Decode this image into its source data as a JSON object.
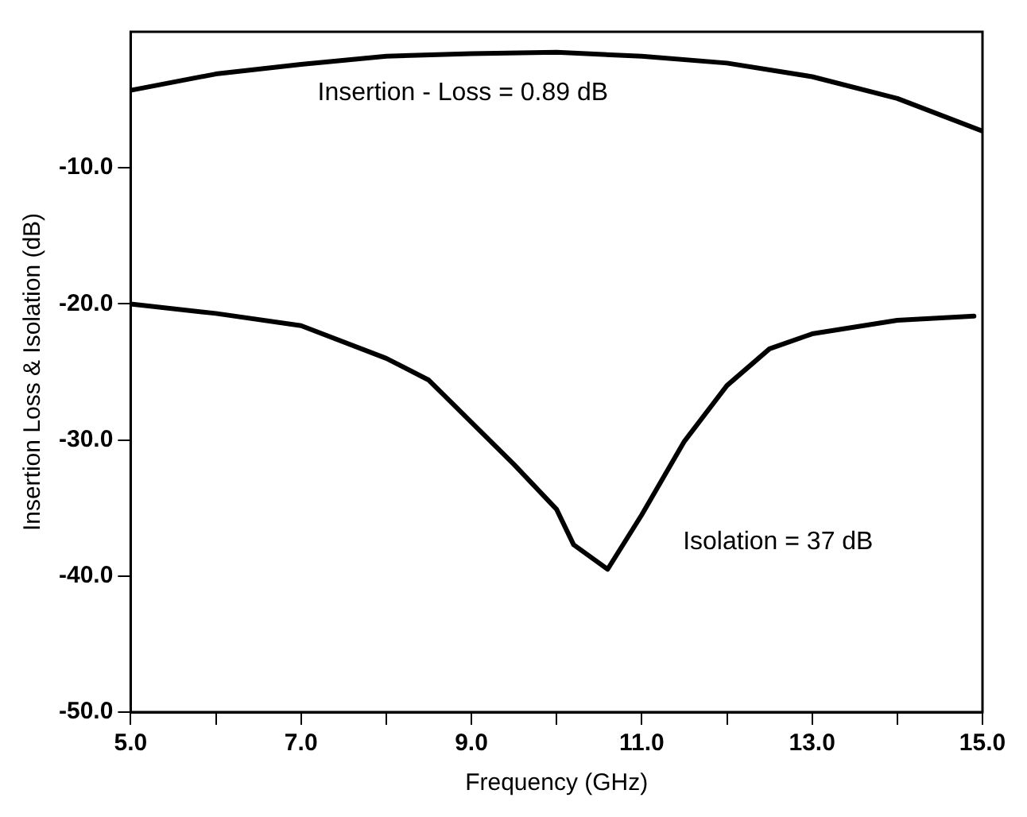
{
  "chart_data": {
    "type": "line",
    "xlabel": "Frequency (GHz)",
    "ylabel": "Insertion Loss & Isolation (dB)",
    "xlim": [
      5,
      15
    ],
    "ylim": [
      -50,
      0
    ],
    "xticks": [
      {
        "value": 5,
        "label": "5.0"
      },
      {
        "value": 6,
        "label": null
      },
      {
        "value": 7,
        "label": "7.0"
      },
      {
        "value": 8,
        "label": null
      },
      {
        "value": 9,
        "label": "9.0"
      },
      {
        "value": 10,
        "label": null
      },
      {
        "value": 11,
        "label": "11.0"
      },
      {
        "value": 12,
        "label": null
      },
      {
        "value": 13,
        "label": "13.0"
      },
      {
        "value": 14,
        "label": null
      },
      {
        "value": 15,
        "label": "15.0"
      }
    ],
    "yticks": [
      {
        "value": -10,
        "label": "-10.0"
      },
      {
        "value": -20,
        "label": "-20.0"
      },
      {
        "value": -30,
        "label": "-30.0"
      },
      {
        "value": -40,
        "label": "-40.0"
      },
      {
        "value": -50,
        "label": "-50.0"
      }
    ],
    "series": [
      {
        "color": "#000000",
        "x": [
          5,
          6,
          7,
          8,
          9,
          10,
          11,
          12,
          13,
          14,
          15
        ],
        "values": [
          -4.3,
          -3.1,
          -2.4,
          -1.8,
          -1.6,
          -1.5,
          -1.8,
          -2.3,
          -3.3,
          -4.9,
          -7.3
        ]
      },
      {
        "color": "#000000",
        "x": [
          5,
          6,
          7,
          8,
          8.5,
          9,
          9.5,
          10,
          10.2,
          10.6,
          11,
          11.5,
          12,
          12.5,
          13,
          14,
          14.9
        ],
        "values": [
          -20,
          -20.7,
          -21.6,
          -24,
          -25.6,
          -28.7,
          -31.8,
          -35.1,
          -37.7,
          -39.5,
          -35.5,
          -30.1,
          -26,
          -23.3,
          -22.2,
          -21.2,
          -20.9
        ]
      }
    ],
    "annotations": [
      "Insertion - Loss = 0.89 dB",
      "Isolation = 37 dB"
    ],
    "grid": false,
    "legend": false,
    "marker": "none",
    "line_style": "solid"
  }
}
